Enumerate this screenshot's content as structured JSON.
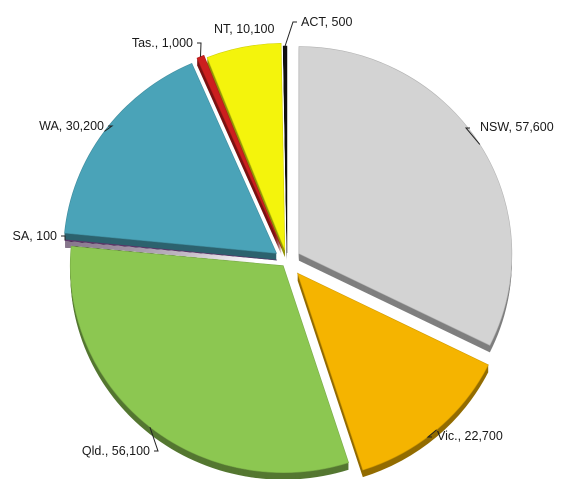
{
  "chart_data": {
    "type": "pie",
    "title": "",
    "style": "3d-exploded",
    "legend": "none",
    "slices": [
      {
        "label": "NSW",
        "value": 57600,
        "display": "NSW, 57,600",
        "color": "#d3d3d3"
      },
      {
        "label": "Vic.",
        "value": 22700,
        "display": "Vic., 22,700",
        "color": "#f5b400"
      },
      {
        "label": "Qld.",
        "value": 56100,
        "display": "Qld., 56,100",
        "color": "#8cc751"
      },
      {
        "label": "SA",
        "value": 100,
        "display": "SA, 100",
        "color": "#6a3f7a"
      },
      {
        "label": "WA",
        "value": 30200,
        "display": "WA, 30,200",
        "color": "#4aa3b8"
      },
      {
        "label": "Tas.",
        "value": 1000,
        "display": "Tas., 1,000",
        "color": "#cc1f1f"
      },
      {
        "label": "NT",
        "value": 10100,
        "display": "NT, 10,100",
        "color": "#f4f40c"
      },
      {
        "label": "ACT",
        "value": 500,
        "display": "ACT, 500",
        "color": "#111111"
      }
    ]
  }
}
